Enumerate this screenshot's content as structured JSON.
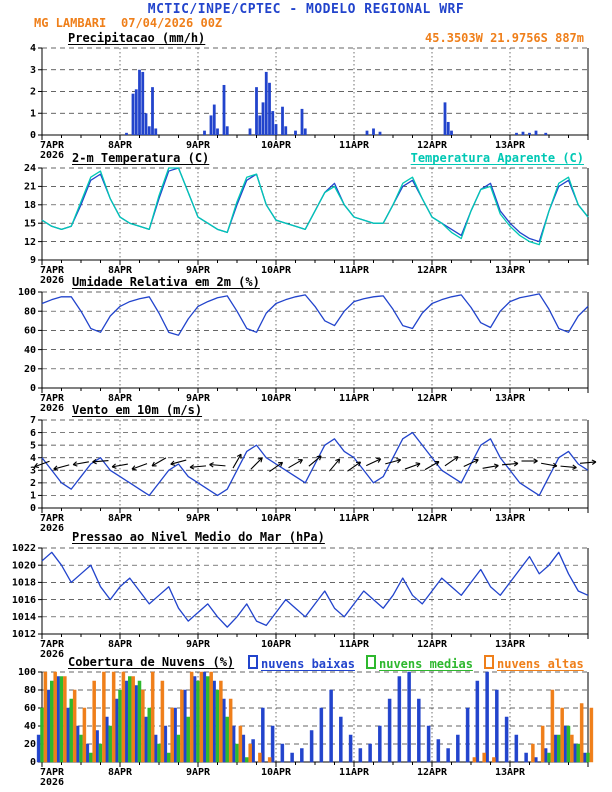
{
  "header": {
    "title": "MCTIC/INPE/CPTEC - MODELO REGIONAL WRF",
    "station": "MG LAMBARI",
    "run": "07/04/2026 00Z",
    "location": "45.3503W 21.9756S 887m"
  },
  "colors": {
    "blue": "#2244cc",
    "cyan": "#00c8b4",
    "green": "#2eb82e",
    "orange": "#ef7f1a",
    "axis": "#000000"
  },
  "x_axis": {
    "total_hours": 168,
    "minor_step_hours": 6,
    "ticks_hours": [
      0,
      24,
      48,
      72,
      96,
      120,
      144
    ],
    "labels": [
      "7APR",
      "8APR",
      "9APR",
      "10APR",
      "11APR",
      "12APR",
      "13APR"
    ],
    "year": "2026"
  },
  "chart_data": [
    {
      "id": "precipitacao",
      "type": "bar",
      "title": "Precipitacao (mm/h)",
      "ylim": [
        0,
        4
      ],
      "yticks": [
        0,
        1,
        2,
        3,
        4
      ],
      "series": [
        {
          "name": "precipitacao",
          "color": "blue",
          "points": [
            [
              26,
              0.1
            ],
            [
              28,
              1.9
            ],
            [
              29,
              2.1
            ],
            [
              30,
              3.0
            ],
            [
              31,
              2.9
            ],
            [
              32,
              1.0
            ],
            [
              33,
              0.4
            ],
            [
              34,
              2.2
            ],
            [
              35,
              0.3
            ],
            [
              50,
              0.2
            ],
            [
              52,
              0.9
            ],
            [
              53,
              1.4
            ],
            [
              54,
              0.3
            ],
            [
              56,
              2.3
            ],
            [
              57,
              0.4
            ],
            [
              64,
              0.3
            ],
            [
              66,
              2.2
            ],
            [
              67,
              0.9
            ],
            [
              68,
              1.5
            ],
            [
              69,
              2.9
            ],
            [
              70,
              2.4
            ],
            [
              71,
              1.1
            ],
            [
              72,
              0.5
            ],
            [
              74,
              1.3
            ],
            [
              75,
              0.4
            ],
            [
              78,
              0.2
            ],
            [
              80,
              1.2
            ],
            [
              81,
              0.3
            ],
            [
              100,
              0.2
            ],
            [
              102,
              0.3
            ],
            [
              104,
              0.15
            ],
            [
              124,
              1.5
            ],
            [
              125,
              0.6
            ],
            [
              126,
              0.2
            ],
            [
              146,
              0.1
            ],
            [
              148,
              0.15
            ],
            [
              150,
              0.1
            ],
            [
              152,
              0.2
            ],
            [
              155,
              0.1
            ]
          ]
        }
      ]
    },
    {
      "id": "temperatura",
      "type": "line",
      "title": "2-m Temperatura (C)",
      "right_label": "Temperatura Aparente (C)",
      "ylim": [
        9,
        24
      ],
      "yticks": [
        9,
        12,
        15,
        18,
        21,
        24
      ],
      "series": [
        {
          "name": "2-m Temperatura (C)",
          "color": "blue",
          "step": 3,
          "values": [
            15.5,
            14.5,
            14,
            14.5,
            18,
            22,
            23,
            19,
            16,
            15,
            14.5,
            14,
            19,
            23.5,
            24.5,
            20,
            16,
            15,
            14,
            13.5,
            18,
            22,
            23,
            18,
            15.5,
            15,
            14.5,
            14,
            17,
            20,
            21.5,
            18,
            16,
            15.5,
            15,
            15,
            18,
            21,
            22,
            19,
            16,
            15,
            14,
            13,
            17,
            20.5,
            21.5,
            17,
            15,
            13.5,
            12.5,
            12,
            17,
            21,
            22,
            18,
            16
          ]
        },
        {
          "name": "Temperatura Aparente (C)",
          "color": "cyan",
          "step": 3,
          "values": [
            15.5,
            14.5,
            14,
            14.5,
            18.5,
            22.5,
            23.5,
            19,
            16,
            15,
            14.5,
            14,
            19.5,
            24,
            24.5,
            20,
            16,
            15,
            14,
            13.5,
            18.5,
            22.5,
            23,
            18,
            15.5,
            15,
            14.5,
            14,
            17,
            20,
            21,
            18,
            16,
            15.5,
            15,
            15,
            18,
            21.5,
            22.5,
            19,
            16,
            15,
            13.5,
            12.5,
            17,
            20.5,
            21,
            16.5,
            14.5,
            13,
            12,
            11.5,
            17,
            21.5,
            22.5,
            18,
            16
          ]
        }
      ]
    },
    {
      "id": "umidade",
      "type": "line",
      "title": "Umidade Relativa em 2m (%)",
      "ylim": [
        0,
        100
      ],
      "yticks": [
        0,
        20,
        40,
        60,
        80,
        100
      ],
      "series": [
        {
          "name": "umidade relativa",
          "color": "blue",
          "step": 3,
          "values": [
            88,
            92,
            95,
            95,
            80,
            62,
            58,
            75,
            85,
            90,
            93,
            95,
            78,
            58,
            55,
            72,
            85,
            90,
            94,
            96,
            80,
            62,
            58,
            78,
            88,
            92,
            95,
            97,
            85,
            70,
            65,
            80,
            90,
            93,
            95,
            96,
            82,
            65,
            62,
            78,
            88,
            92,
            95,
            97,
            84,
            68,
            63,
            80,
            90,
            94,
            96,
            98,
            82,
            62,
            58,
            75,
            85
          ]
        }
      ]
    },
    {
      "id": "vento",
      "type": "line",
      "title": "Vento em 10m (m/s)",
      "ylim": [
        0,
        7
      ],
      "yticks": [
        0,
        1,
        2,
        3,
        4,
        5,
        6,
        7
      ],
      "series": [
        {
          "name": "velocidade do vento",
          "color": "blue",
          "step": 3,
          "values": [
            4,
            3,
            2,
            1.5,
            2.5,
            3.5,
            4,
            3,
            2.5,
            2,
            1.5,
            1,
            2,
            3,
            3.5,
            2.5,
            2,
            1.5,
            1,
            1.5,
            3,
            4.5,
            5,
            4,
            3.5,
            3,
            2.5,
            2,
            3.5,
            5,
            5.5,
            4.5,
            4,
            3,
            2,
            2.5,
            4,
            5.5,
            6,
            5,
            4,
            3,
            2.5,
            2,
            3.5,
            5,
            5.5,
            4,
            3,
            2,
            1.5,
            1,
            2.5,
            4,
            4.5,
            3.5,
            3
          ]
        }
      ],
      "arrows": {
        "step": 6,
        "y": 3.5,
        "angles": [
          200,
          195,
          190,
          185,
          190,
          200,
          210,
          195,
          185,
          175,
          60,
          45,
          35,
          30,
          40,
          50,
          35,
          25,
          15,
          20,
          30,
          35,
          25,
          10,
          5,
          0,
          350,
          355,
          5
        ]
      }
    },
    {
      "id": "pressao",
      "type": "line",
      "title": "Pressao ao Nivel Medio do Mar (hPa)",
      "ylim": [
        1012,
        1022
      ],
      "yticks": [
        1012,
        1014,
        1016,
        1018,
        1020,
        1022
      ],
      "series": [
        {
          "name": "pressao ao nivel medio do mar",
          "color": "blue",
          "step": 3,
          "values": [
            1020.5,
            1021.5,
            1020,
            1018,
            1019,
            1020,
            1017.5,
            1016,
            1017.5,
            1018.5,
            1017,
            1015.5,
            1016.5,
            1017.5,
            1015,
            1013.5,
            1014.5,
            1015.5,
            1014,
            1012.8,
            1014,
            1015.5,
            1013.5,
            1013,
            1014.5,
            1016,
            1015,
            1014,
            1015.5,
            1017,
            1015,
            1014,
            1015.5,
            1017,
            1016,
            1015,
            1016.5,
            1018.5,
            1016.5,
            1015.5,
            1017,
            1018.5,
            1017.5,
            1016.5,
            1018,
            1019.5,
            1017.5,
            1016.5,
            1018,
            1019.5,
            1021,
            1019,
            1020,
            1021.5,
            1019,
            1017,
            1016.5
          ]
        }
      ]
    },
    {
      "id": "nuvens",
      "type": "bar",
      "title": "Cobertura de Nuvens (%)",
      "ylim": [
        0,
        100
      ],
      "yticks": [
        0,
        20,
        40,
        60,
        80,
        100
      ],
      "series": [
        {
          "name": "nuvens baixas",
          "color": "blue",
          "step": 3,
          "values": [
            30,
            80,
            95,
            60,
            40,
            20,
            35,
            50,
            70,
            90,
            85,
            50,
            30,
            40,
            60,
            80,
            95,
            100,
            90,
            70,
            40,
            30,
            25,
            60,
            40,
            20,
            10,
            15,
            35,
            60,
            80,
            50,
            30,
            15,
            20,
            40,
            70,
            95,
            100,
            70,
            40,
            25,
            15,
            30,
            60,
            90,
            100,
            80,
            50,
            30,
            10,
            5,
            15,
            30,
            40,
            20,
            10
          ]
        },
        {
          "name": "nuvens medias",
          "color": "green",
          "step": 3,
          "values": [
            60,
            90,
            95,
            70,
            30,
            10,
            20,
            40,
            80,
            95,
            90,
            60,
            20,
            10,
            30,
            50,
            90,
            95,
            80,
            50,
            20,
            5,
            0,
            0,
            0,
            0,
            0,
            0,
            0,
            0,
            0,
            0,
            0,
            0,
            0,
            0,
            0,
            0,
            0,
            0,
            0,
            0,
            0,
            0,
            0,
            0,
            0,
            0,
            0,
            0,
            0,
            0,
            10,
            30,
            40,
            20,
            10
          ]
        },
        {
          "name": "nuvens altas",
          "color": "orange",
          "step": 3,
          "values": [
            100,
            100,
            95,
            80,
            60,
            90,
            100,
            100,
            100,
            95,
            80,
            100,
            90,
            60,
            80,
            100,
            100,
            100,
            90,
            70,
            40,
            20,
            10,
            5,
            0,
            0,
            0,
            0,
            0,
            0,
            0,
            0,
            0,
            0,
            0,
            0,
            0,
            0,
            0,
            0,
            0,
            0,
            0,
            0,
            5,
            10,
            5,
            0,
            0,
            0,
            20,
            40,
            80,
            60,
            30,
            65,
            60
          ]
        }
      ]
    }
  ]
}
